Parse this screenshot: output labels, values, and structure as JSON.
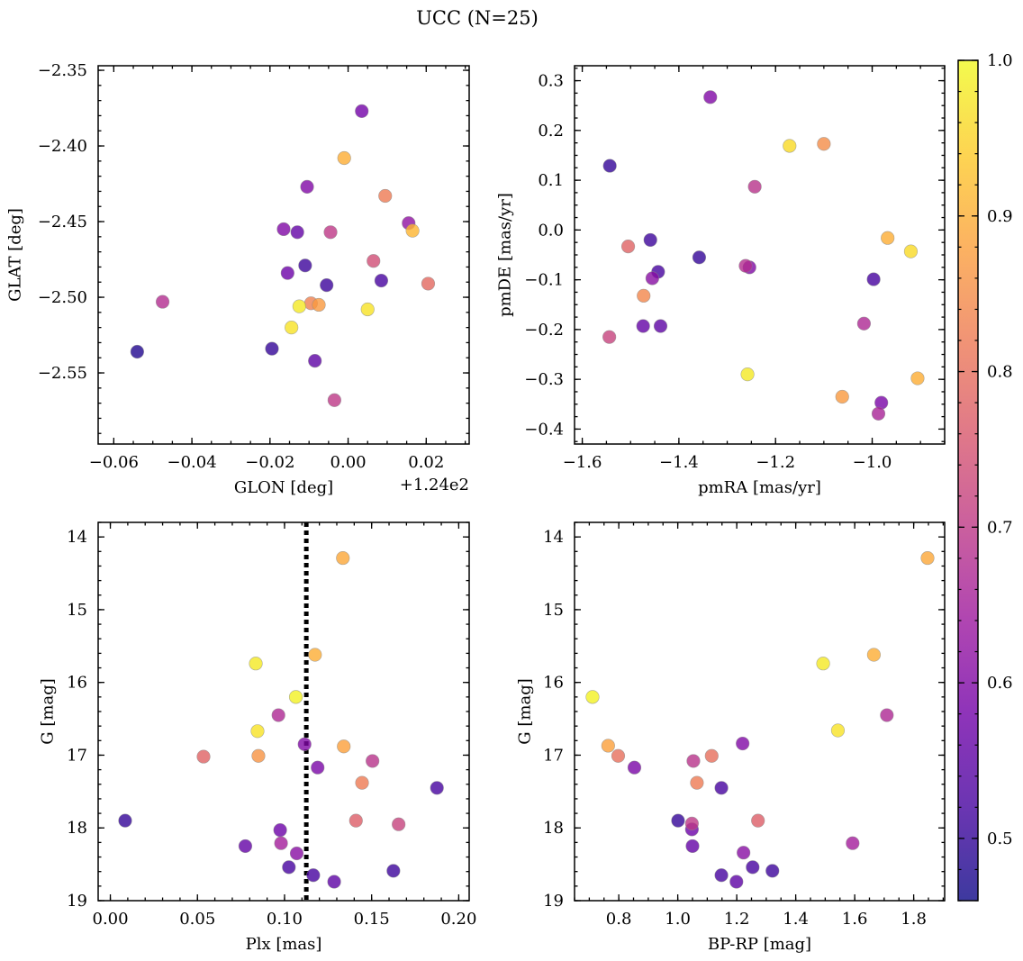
{
  "title": "UCC (N=25)",
  "colorbar": {
    "range": [
      0.46,
      1.0
    ],
    "ticks": [
      0.5,
      0.6,
      0.7,
      0.8,
      0.9,
      1.0
    ],
    "tick_labels": [
      "0.5",
      "0.6",
      "0.7",
      "0.8",
      "0.9",
      "1.0"
    ],
    "stops": [
      "#0d0887",
      "#46039f",
      "#7201a8",
      "#9c179e",
      "#bd3786",
      "#d8576b",
      "#ed7953",
      "#fb9f3a",
      "#fdca26",
      "#f0f921"
    ],
    "alpha": 0.8
  },
  "chart_data": [
    {
      "id": "glon-glat",
      "type": "scatter",
      "xlabel": "GLON [deg]",
      "ylabel": "GLAT [deg]",
      "offset_label": "+1.24e2",
      "xlim": [
        -0.064,
        0.031
      ],
      "ylim": [
        -2.597,
        -2.347
      ],
      "xticks": [
        -0.06,
        -0.04,
        -0.02,
        0.0,
        0.02
      ],
      "xtick_labels": [
        "−0.06",
        "−0.04",
        "−0.02",
        "0.00",
        "0.02"
      ],
      "yticks": [
        -2.55,
        -2.5,
        -2.45,
        -2.4,
        -2.35
      ],
      "ytick_labels": [
        "−2.55",
        "−2.50",
        "−2.45",
        "−2.40",
        "−2.35"
      ],
      "x_minor_step": 0.005,
      "y_minor_step": 0.01,
      "points": [
        {
          "x": -0.054,
          "y": -2.536,
          "c": 0.48
        },
        {
          "x": -0.0475,
          "y": -2.503,
          "c": 0.68
        },
        {
          "x": -0.0195,
          "y": -2.534,
          "c": 0.5
        },
        {
          "x": -0.0165,
          "y": -2.455,
          "c": 0.6
        },
        {
          "x": -0.0155,
          "y": -2.484,
          "c": 0.57
        },
        {
          "x": -0.0145,
          "y": -2.52,
          "c": 0.97
        },
        {
          "x": -0.013,
          "y": -2.457,
          "c": 0.56
        },
        {
          "x": -0.0125,
          "y": -2.506,
          "c": 0.98
        },
        {
          "x": -0.011,
          "y": -2.479,
          "c": 0.51
        },
        {
          "x": -0.0105,
          "y": -2.427,
          "c": 0.6
        },
        {
          "x": -0.0095,
          "y": -2.504,
          "c": 0.83
        },
        {
          "x": -0.0085,
          "y": -2.542,
          "c": 0.55
        },
        {
          "x": -0.0075,
          "y": -2.505,
          "c": 0.87
        },
        {
          "x": -0.0055,
          "y": -2.492,
          "c": 0.51
        },
        {
          "x": -0.0045,
          "y": -2.457,
          "c": 0.7
        },
        {
          "x": -0.0035,
          "y": -2.568,
          "c": 0.7
        },
        {
          "x": -0.001,
          "y": -2.408,
          "c": 0.9
        },
        {
          "x": 0.0035,
          "y": -2.377,
          "c": 0.58
        },
        {
          "x": 0.005,
          "y": -2.508,
          "c": 0.97
        },
        {
          "x": 0.0065,
          "y": -2.476,
          "c": 0.74
        },
        {
          "x": 0.0085,
          "y": -2.489,
          "c": 0.52
        },
        {
          "x": 0.0095,
          "y": -2.433,
          "c": 0.82
        },
        {
          "x": 0.0155,
          "y": -2.451,
          "c": 0.62
        },
        {
          "x": 0.0165,
          "y": -2.456,
          "c": 0.91
        },
        {
          "x": 0.0205,
          "y": -2.491,
          "c": 0.79
        }
      ]
    },
    {
      "id": "pmra-pmde",
      "type": "scatter",
      "xlabel": "pmRA [mas/yr]",
      "ylabel": "pmDE [mas/yr]",
      "xlim": [
        -1.616,
        -0.85
      ],
      "ylim": [
        -0.43,
        0.33
      ],
      "xticks": [
        -1.6,
        -1.4,
        -1.2,
        -1.0
      ],
      "xtick_labels": [
        "−1.6",
        "−1.4",
        "−1.2",
        "−1.0"
      ],
      "yticks": [
        -0.4,
        -0.3,
        -0.2,
        -0.1,
        0.0,
        0.1,
        0.2,
        0.3
      ],
      "ytick_labels": [
        "−0.4",
        "−0.3",
        "−0.2",
        "−0.1",
        "0.0",
        "0.1",
        "0.2",
        "0.3"
      ],
      "x_minor_step": 0.05,
      "y_minor_step": 0.025,
      "points": [
        {
          "x": -1.543,
          "y": 0.129,
          "c": 0.5
        },
        {
          "x": -1.544,
          "y": -0.215,
          "c": 0.72
        },
        {
          "x": -1.505,
          "y": -0.033,
          "c": 0.78
        },
        {
          "x": -1.473,
          "y": -0.132,
          "c": 0.84
        },
        {
          "x": -1.474,
          "y": -0.193,
          "c": 0.56
        },
        {
          "x": -1.459,
          "y": -0.02,
          "c": 0.51
        },
        {
          "x": -1.455,
          "y": -0.097,
          "c": 0.61
        },
        {
          "x": -1.443,
          "y": -0.084,
          "c": 0.52
        },
        {
          "x": -1.438,
          "y": -0.193,
          "c": 0.55
        },
        {
          "x": -1.358,
          "y": -0.055,
          "c": 0.5
        },
        {
          "x": -1.335,
          "y": 0.267,
          "c": 0.6
        },
        {
          "x": -1.262,
          "y": -0.072,
          "c": 0.68
        },
        {
          "x": -1.254,
          "y": -0.075,
          "c": 0.6
        },
        {
          "x": -1.258,
          "y": -0.29,
          "c": 0.98
        },
        {
          "x": -1.243,
          "y": 0.087,
          "c": 0.69
        },
        {
          "x": -1.171,
          "y": 0.169,
          "c": 0.96
        },
        {
          "x": -1.1,
          "y": 0.173,
          "c": 0.85
        },
        {
          "x": -1.062,
          "y": -0.335,
          "c": 0.87
        },
        {
          "x": -1.017,
          "y": -0.188,
          "c": 0.67
        },
        {
          "x": -0.997,
          "y": -0.099,
          "c": 0.52
        },
        {
          "x": -0.987,
          "y": -0.369,
          "c": 0.66
        },
        {
          "x": -0.981,
          "y": -0.347,
          "c": 0.59
        },
        {
          "x": -0.968,
          "y": -0.016,
          "c": 0.9
        },
        {
          "x": -0.92,
          "y": -0.043,
          "c": 0.96
        },
        {
          "x": -0.906,
          "y": -0.298,
          "c": 0.9
        }
      ]
    },
    {
      "id": "plx-g",
      "type": "scatter",
      "xlabel": "Plx [mas]",
      "ylabel": "G [mag]",
      "xlim": [
        -0.007,
        0.206
      ],
      "ylim": [
        19.0,
        13.8
      ],
      "y_inverted": true,
      "xticks": [
        0.0,
        0.05,
        0.1,
        0.15,
        0.2
      ],
      "xtick_labels": [
        "0.00",
        "0.05",
        "0.10",
        "0.15",
        "0.20"
      ],
      "yticks": [
        14,
        15,
        16,
        17,
        18,
        19
      ],
      "ytick_labels": [
        "14",
        "15",
        "16",
        "17",
        "18",
        "19"
      ],
      "x_minor_step": 0.01,
      "y_minor_step": 0.2,
      "vline": {
        "x": 0.1125,
        "style": "dotted"
      },
      "points": [
        {
          "x": 0.0085,
          "y": 17.9,
          "c": 0.5
        },
        {
          "x": 0.0535,
          "y": 17.02,
          "c": 0.78
        },
        {
          "x": 0.0775,
          "y": 18.25,
          "c": 0.56
        },
        {
          "x": 0.0835,
          "y": 15.74,
          "c": 0.98
        },
        {
          "x": 0.0845,
          "y": 16.67,
          "c": 0.97
        },
        {
          "x": 0.085,
          "y": 17.01,
          "c": 0.86
        },
        {
          "x": 0.0965,
          "y": 16.45,
          "c": 0.67
        },
        {
          "x": 0.0975,
          "y": 18.03,
          "c": 0.57
        },
        {
          "x": 0.098,
          "y": 18.21,
          "c": 0.65
        },
        {
          "x": 0.1025,
          "y": 18.54,
          "c": 0.52
        },
        {
          "x": 0.1065,
          "y": 16.2,
          "c": 0.99
        },
        {
          "x": 0.107,
          "y": 18.35,
          "c": 0.61
        },
        {
          "x": 0.1115,
          "y": 16.85,
          "c": 0.6
        },
        {
          "x": 0.1165,
          "y": 18.65,
          "c": 0.52
        },
        {
          "x": 0.1175,
          "y": 15.62,
          "c": 0.9
        },
        {
          "x": 0.119,
          "y": 17.17,
          "c": 0.59
        },
        {
          "x": 0.1285,
          "y": 18.74,
          "c": 0.55
        },
        {
          "x": 0.1335,
          "y": 14.29,
          "c": 0.89
        },
        {
          "x": 0.134,
          "y": 16.88,
          "c": 0.88
        },
        {
          "x": 0.141,
          "y": 17.9,
          "c": 0.77
        },
        {
          "x": 0.1445,
          "y": 17.38,
          "c": 0.82
        },
        {
          "x": 0.1505,
          "y": 17.08,
          "c": 0.69
        },
        {
          "x": 0.1625,
          "y": 18.59,
          "c": 0.51
        },
        {
          "x": 0.1655,
          "y": 17.95,
          "c": 0.72
        },
        {
          "x": 0.1875,
          "y": 17.45,
          "c": 0.52
        }
      ]
    },
    {
      "id": "bprp-g",
      "type": "scatter",
      "xlabel": "BP-RP [mag]",
      "ylabel": "G [mag]",
      "xlim": [
        0.65,
        1.905
      ],
      "ylim": [
        19.0,
        13.8
      ],
      "y_inverted": true,
      "xticks": [
        0.8,
        1.0,
        1.2,
        1.4,
        1.6,
        1.8
      ],
      "xtick_labels": [
        "0.8",
        "1.0",
        "1.2",
        "1.4",
        "1.6",
        "1.8"
      ],
      "yticks": [
        14,
        15,
        16,
        17,
        18,
        19
      ],
      "ytick_labels": [
        "14",
        "15",
        "16",
        "17",
        "18",
        "19"
      ],
      "x_minor_step": 0.05,
      "y_minor_step": 0.2,
      "points": [
        {
          "x": 0.711,
          "y": 16.2,
          "c": 0.99
        },
        {
          "x": 0.764,
          "y": 16.87,
          "c": 0.88
        },
        {
          "x": 0.798,
          "y": 17.01,
          "c": 0.8
        },
        {
          "x": 0.853,
          "y": 17.17,
          "c": 0.59
        },
        {
          "x": 1.001,
          "y": 17.9,
          "c": 0.5
        },
        {
          "x": 1.048,
          "y": 17.94,
          "c": 0.7
        },
        {
          "x": 1.048,
          "y": 18.02,
          "c": 0.57
        },
        {
          "x": 1.05,
          "y": 18.25,
          "c": 0.56
        },
        {
          "x": 1.053,
          "y": 17.08,
          "c": 0.69
        },
        {
          "x": 1.065,
          "y": 17.38,
          "c": 0.82
        },
        {
          "x": 1.115,
          "y": 17.01,
          "c": 0.8
        },
        {
          "x": 1.148,
          "y": 18.65,
          "c": 0.52
        },
        {
          "x": 1.148,
          "y": 17.45,
          "c": 0.52
        },
        {
          "x": 1.199,
          "y": 18.74,
          "c": 0.55
        },
        {
          "x": 1.22,
          "y": 16.84,
          "c": 0.6
        },
        {
          "x": 1.223,
          "y": 18.34,
          "c": 0.61
        },
        {
          "x": 1.254,
          "y": 18.54,
          "c": 0.52
        },
        {
          "x": 1.272,
          "y": 17.9,
          "c": 0.77
        },
        {
          "x": 1.321,
          "y": 18.59,
          "c": 0.51
        },
        {
          "x": 1.493,
          "y": 15.74,
          "c": 0.98
        },
        {
          "x": 1.543,
          "y": 16.66,
          "c": 0.97
        },
        {
          "x": 1.593,
          "y": 18.21,
          "c": 0.65
        },
        {
          "x": 1.665,
          "y": 15.62,
          "c": 0.9
        },
        {
          "x": 1.709,
          "y": 16.45,
          "c": 0.67
        },
        {
          "x": 1.847,
          "y": 14.29,
          "c": 0.89
        }
      ]
    }
  ]
}
